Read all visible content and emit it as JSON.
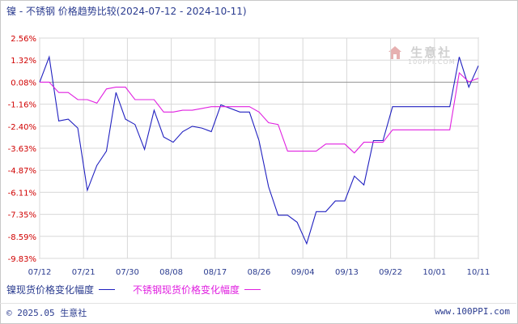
{
  "chart_data": {
    "type": "line",
    "title": "镍 - 不锈钢 价格趋势比较(2024-07-12 - 2024-10-11)",
    "x": [
      "07/12",
      "07/14",
      "07/16",
      "07/18",
      "07/20",
      "07/22",
      "07/24",
      "07/26",
      "07/28",
      "07/30",
      "08/01",
      "08/03",
      "08/05",
      "08/07",
      "08/09",
      "08/11",
      "08/13",
      "08/15",
      "08/17",
      "08/19",
      "08/21",
      "08/23",
      "08/25",
      "08/27",
      "08/29",
      "08/31",
      "09/02",
      "09/04",
      "09/06",
      "09/08",
      "09/10",
      "09/12",
      "09/14",
      "09/16",
      "09/18",
      "09/20",
      "09/22",
      "09/24",
      "09/26",
      "09/28",
      "09/30",
      "10/02",
      "10/04",
      "10/06",
      "10/08",
      "10/10",
      "10/11"
    ],
    "xticks": [
      "07/12",
      "07/21",
      "07/30",
      "08/08",
      "08/17",
      "08/26",
      "09/04",
      "09/13",
      "09/22",
      "10/01",
      "10/11"
    ],
    "yticks": [
      "2.56%",
      "1.32%",
      "0.08%",
      "-1.16%",
      "-2.40%",
      "-3.63%",
      "-4.87%",
      "-6.11%",
      "-7.35%",
      "-8.59%",
      "-9.83%"
    ],
    "ylim": [
      -9.83,
      2.56
    ],
    "grid": true,
    "series": [
      {
        "name": "镍现货价格变化幅度",
        "color": "#2020c0",
        "values": [
          0.08,
          1.5,
          -2.1,
          -2.0,
          -2.5,
          -6.0,
          -4.6,
          -3.8,
          -0.5,
          -2.0,
          -2.3,
          -3.7,
          -1.5,
          -3.0,
          -3.3,
          -2.7,
          -2.4,
          -2.5,
          -2.7,
          -1.2,
          -1.4,
          -1.6,
          -1.6,
          -3.2,
          -5.8,
          -7.4,
          -7.4,
          -7.8,
          -9.0,
          -7.2,
          -7.2,
          -6.6,
          -6.6,
          -5.2,
          -5.7,
          -3.2,
          -3.2,
          -1.3,
          -1.3,
          -1.3,
          -1.3,
          -1.3,
          -1.3,
          -1.3,
          1.5,
          -0.2,
          1.0
        ]
      },
      {
        "name": "不锈钢现货价格变化幅度",
        "color": "#e020e0",
        "values": [
          0.08,
          0.08,
          -0.5,
          -0.5,
          -0.9,
          -0.9,
          -1.1,
          -0.3,
          -0.2,
          -0.2,
          -0.9,
          -0.9,
          -0.9,
          -1.6,
          -1.6,
          -1.5,
          -1.5,
          -1.4,
          -1.3,
          -1.3,
          -1.3,
          -1.3,
          -1.3,
          -1.6,
          -2.2,
          -2.3,
          -3.8,
          -3.8,
          -3.8,
          -3.8,
          -3.4,
          -3.4,
          -3.4,
          -3.9,
          -3.3,
          -3.3,
          -3.3,
          -2.6,
          -2.6,
          -2.6,
          -2.6,
          -2.6,
          -2.6,
          -2.6,
          0.6,
          0.1,
          0.3
        ]
      }
    ]
  },
  "footer": {
    "left": "© 2025.05 生意社",
    "right": "www.100PPI.com"
  },
  "watermark": {
    "name": "生意社",
    "url": "100PPI.COM"
  }
}
